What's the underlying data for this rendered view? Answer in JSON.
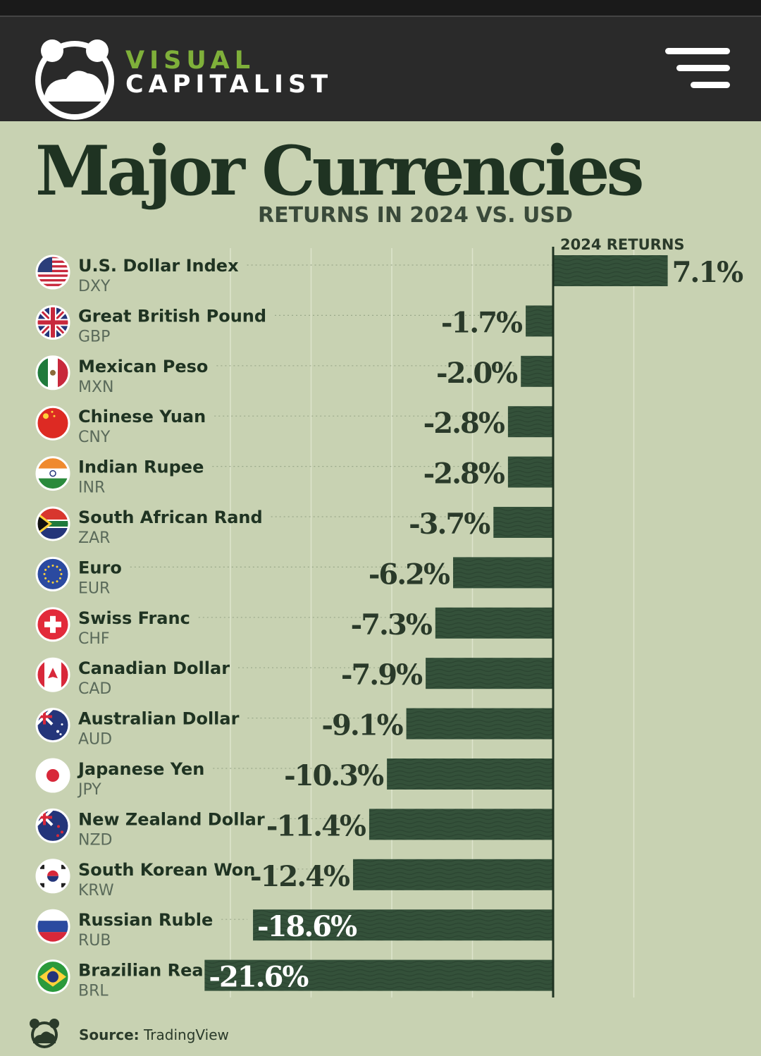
{
  "brand": {
    "line1": "VISUAL",
    "line2": "CAPITALIST"
  },
  "title": "Major Currencies",
  "subtitle": "RETURNS IN 2024 VS. USD",
  "colors": {
    "bar": "#34513a",
    "background": "#c8d2b2",
    "text": "#1f3322",
    "header": "#2a2a2a",
    "accent": "#7fb03a"
  },
  "chart_data": {
    "type": "bar",
    "orientation": "horizontal",
    "column_label": "2024 RETURNS",
    "unit": "%",
    "categories": [
      "U.S. Dollar Index",
      "Great British Pound",
      "Mexican Peso",
      "Chinese Yuan",
      "Indian Rupee",
      "South African Rand",
      "Euro",
      "Swiss Franc",
      "Canadian Dollar",
      "Australian Dollar",
      "Japanese Yen",
      "New Zealand Dollar",
      "South Korean Won",
      "Russian Ruble",
      "Brazilian Real"
    ],
    "codes": [
      "DXY",
      "GBP",
      "MXN",
      "CNY",
      "INR",
      "ZAR",
      "EUR",
      "CHF",
      "CAD",
      "AUD",
      "JPY",
      "NZD",
      "KRW",
      "RUB",
      "BRL"
    ],
    "values": [
      7.1,
      -1.7,
      -2.0,
      -2.8,
      -2.8,
      -3.7,
      -6.2,
      -7.3,
      -7.9,
      -9.1,
      -10.3,
      -11.4,
      -12.4,
      -18.6,
      -21.6
    ],
    "labels": [
      "7.1%",
      "-1.7%",
      "-2.0%",
      "-2.8%",
      "-2.8%",
      "-3.7%",
      "-6.2%",
      "-7.3%",
      "-7.9%",
      "-9.1%",
      "-10.3%",
      "-11.4%",
      "-12.4%",
      "-18.6%",
      "-21.6%"
    ],
    "flags": [
      "us-flag-icon",
      "uk-flag-icon",
      "mexico-flag-icon",
      "china-flag-icon",
      "india-flag-icon",
      "south-africa-flag-icon",
      "eu-flag-icon",
      "switzerland-flag-icon",
      "canada-flag-icon",
      "australia-flag-icon",
      "japan-flag-icon",
      "new-zealand-flag-icon",
      "south-korea-flag-icon",
      "russia-flag-icon",
      "brazil-flag-icon"
    ],
    "xlim": [
      -21.6,
      10
    ]
  },
  "source": {
    "label": "Source:",
    "value": "TradingView"
  }
}
